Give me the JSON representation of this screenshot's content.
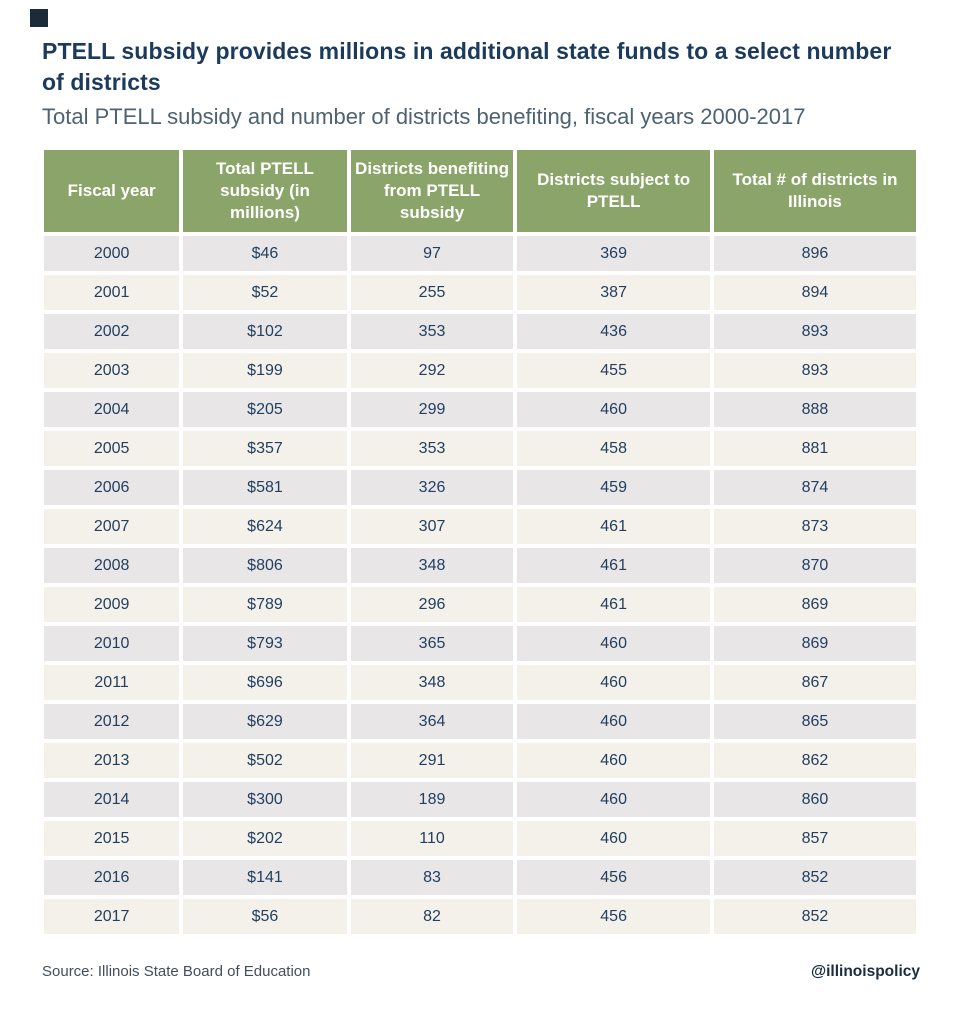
{
  "header": {
    "title_line1": "PTELL subsidy provides millions in additional state funds to a select number",
    "title_line2": "of districts",
    "subtitle": "Total PTELL subsidy and number of districts benefiting, fiscal years 2000-2017"
  },
  "footer": {
    "source": "Source: Illinois State Board of Education",
    "handle": "@illinoispolicy"
  },
  "colors": {
    "header_green": "#8ba46a",
    "row_gray": "#e8e6e6",
    "row_cream": "#f4f1ea",
    "body_text_navy": "#223f60",
    "title_navy": "#1b3a5c",
    "subtitle_slate": "#4d6272",
    "logo_navy": "#1b2b3a"
  },
  "chart_data": {
    "type": "table",
    "title": "PTELL subsidy provides millions in additional state funds to a select number of districts",
    "subtitle": "Total PTELL subsidy and number of districts benefiting, fiscal years 2000-2017",
    "columns": [
      "Fiscal year",
      "Total PTELL subsidy (in millions)",
      "Districts benefiting from PTELL subsidy",
      "Districts subject to PTELL",
      "Total # of districts in Illinois"
    ],
    "rows": [
      [
        "2000",
        "$46",
        "97",
        "369",
        "896"
      ],
      [
        "2001",
        "$52",
        "255",
        "387",
        "894"
      ],
      [
        "2002",
        "$102",
        "353",
        "436",
        "893"
      ],
      [
        "2003",
        "$199",
        "292",
        "455",
        "893"
      ],
      [
        "2004",
        "$205",
        "299",
        "460",
        "888"
      ],
      [
        "2005",
        "$357",
        "353",
        "458",
        "881"
      ],
      [
        "2006",
        "$581",
        "326",
        "459",
        "874"
      ],
      [
        "2007",
        "$624",
        "307",
        "461",
        "873"
      ],
      [
        "2008",
        "$806",
        "348",
        "461",
        "870"
      ],
      [
        "2009",
        "$789",
        "296",
        "461",
        "869"
      ],
      [
        "2010",
        "$793",
        "365",
        "460",
        "869"
      ],
      [
        "2011",
        "$696",
        "348",
        "460",
        "867"
      ],
      [
        "2012",
        "$629",
        "364",
        "460",
        "865"
      ],
      [
        "2013",
        "$502",
        "291",
        "460",
        "862"
      ],
      [
        "2014",
        "$300",
        "189",
        "460",
        "860"
      ],
      [
        "2015",
        "$202",
        "110",
        "460",
        "857"
      ],
      [
        "2016",
        "$141",
        "83",
        "456",
        "852"
      ],
      [
        "2017",
        "$56",
        "82",
        "456",
        "852"
      ]
    ],
    "source": "Illinois State Board of Education"
  }
}
